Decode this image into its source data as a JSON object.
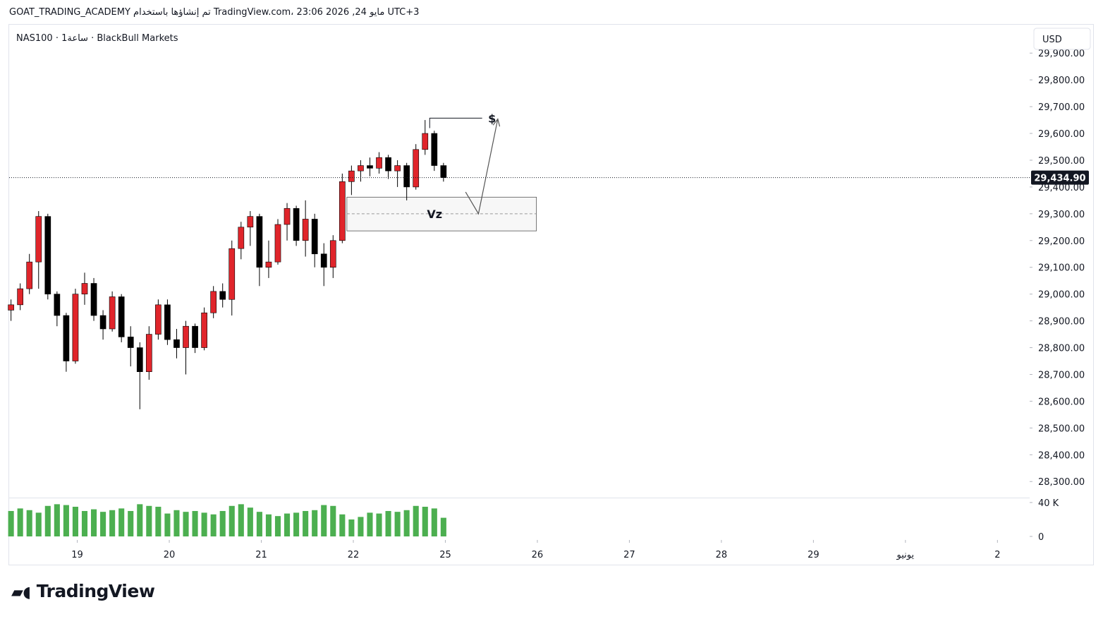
{
  "header": {
    "caption": "GOAT_TRADING_ACADEMY تم إنشاؤها باستخدام TradingView.com، 23:06 2026 ,24 مايو UTC+3"
  },
  "chart_data": {
    "type": "candlestick",
    "symbol": "NAS100 · 1ساعة · BlackBull Markets",
    "currency": "USD",
    "x": [
      -0.72,
      -0.62,
      -0.52,
      -0.42,
      -0.32,
      -0.22,
      -0.12,
      -0.02,
      0.08,
      0.18,
      0.28,
      0.38,
      0.48,
      0.58,
      0.68,
      0.78,
      0.88,
      0.98,
      1.08,
      1.18,
      1.28,
      1.38,
      1.48,
      1.58,
      1.68,
      1.78,
      1.88,
      1.98,
      2.08,
      2.18,
      2.28,
      2.38,
      2.48,
      2.58,
      2.68,
      2.78,
      2.88,
      2.98,
      3.08,
      3.18,
      3.28,
      3.38,
      3.48,
      3.58,
      3.68,
      3.78,
      3.88,
      3.98
    ],
    "open": [
      28940,
      28960,
      29020,
      29120,
      29290,
      29000,
      28920,
      28750,
      29000,
      29040,
      28920,
      28870,
      28990,
      28840,
      28800,
      28710,
      28850,
      28960,
      28830,
      28800,
      28880,
      28800,
      28930,
      29010,
      28980,
      29170,
      29250,
      29290,
      29100,
      29120,
      29260,
      29320,
      29200,
      29280,
      29150,
      29100,
      29200,
      29420,
      29460,
      29480,
      29470,
      29510,
      29460,
      29480,
      29400,
      29540,
      29600,
      29480
    ],
    "high": [
      28980,
      29040,
      29150,
      29310,
      29300,
      29010,
      28930,
      29020,
      29080,
      29060,
      28940,
      29010,
      29000,
      28880,
      28820,
      28880,
      28980,
      28980,
      28870,
      28900,
      28890,
      28950,
      29030,
      29040,
      29200,
      29270,
      29310,
      29300,
      29200,
      29280,
      29340,
      29330,
      29350,
      29300,
      29190,
      29220,
      29450,
      29480,
      29500,
      29510,
      29530,
      29520,
      29500,
      29490,
      29560,
      29650,
      29610,
      29490
    ],
    "low": [
      28900,
      28940,
      29000,
      29020,
      28980,
      28880,
      28710,
      28740,
      28960,
      28900,
      28830,
      28860,
      28820,
      28730,
      28570,
      28680,
      28830,
      28810,
      28760,
      28700,
      28780,
      28790,
      28910,
      28950,
      28920,
      29130,
      29180,
      29030,
      29060,
      29110,
      29200,
      29180,
      29140,
      29100,
      29030,
      29060,
      29190,
      29370,
      29420,
      29440,
      29450,
      29430,
      29400,
      29350,
      29390,
      29520,
      29460,
      29420
    ],
    "close": [
      28960,
      29020,
      29120,
      29290,
      29000,
      28920,
      28750,
      29000,
      29040,
      28920,
      28870,
      28990,
      28840,
      28800,
      28710,
      28850,
      28960,
      28830,
      28800,
      28880,
      28800,
      28930,
      29010,
      28980,
      29170,
      29250,
      29290,
      29100,
      29120,
      29260,
      29320,
      29200,
      29280,
      29150,
      29100,
      29200,
      29420,
      29460,
      29480,
      29470,
      29510,
      29460,
      29480,
      29400,
      29540,
      29600,
      29480,
      29434.9
    ],
    "up_color": "#e0252b",
    "down_color": "#000000",
    "last_price": {
      "value": 29434.9,
      "label": "29,434.90"
    },
    "xlim": [
      -0.74,
      10.35
    ],
    "xticks": [
      {
        "value": 0,
        "label": "19"
      },
      {
        "value": 1,
        "label": "20"
      },
      {
        "value": 2,
        "label": "21"
      },
      {
        "value": 3,
        "label": "22"
      },
      {
        "value": 4,
        "label": "25"
      },
      {
        "value": 5,
        "label": "26"
      },
      {
        "value": 6,
        "label": "27"
      },
      {
        "value": 7,
        "label": "28"
      },
      {
        "value": 8,
        "label": "29"
      },
      {
        "value": 9,
        "label": "يونيو"
      },
      {
        "value": 10,
        "label": "2"
      }
    ],
    "ylim": [
      28240,
      30006
    ],
    "yticks": [
      {
        "value": 28300,
        "label": "28,300.00"
      },
      {
        "value": 28400,
        "label": "28,400.00"
      },
      {
        "value": 28500,
        "label": "28,500.00"
      },
      {
        "value": 28600,
        "label": "28,600.00"
      },
      {
        "value": 28700,
        "label": "28,700.00"
      },
      {
        "value": 28800,
        "label": "28,800.00"
      },
      {
        "value": 28900,
        "label": "28,900.00"
      },
      {
        "value": 29000,
        "label": "29,000.00"
      },
      {
        "value": 29100,
        "label": "29,100.00"
      },
      {
        "value": 29200,
        "label": "29,200.00"
      },
      {
        "value": 29300,
        "label": "29,300.00"
      },
      {
        "value": 29400,
        "label": "29,400.00"
      },
      {
        "value": 29500,
        "label": "29,500.00"
      },
      {
        "value": 29600,
        "label": "29,600.00"
      },
      {
        "value": 29700,
        "label": "29,700.00"
      },
      {
        "value": 29800,
        "label": "29,800.00"
      },
      {
        "value": 29900,
        "label": "29,900.00"
      }
    ],
    "volume": {
      "values": [
        30000,
        33000,
        31000,
        28000,
        36000,
        38000,
        37000,
        35000,
        30000,
        32000,
        29000,
        31000,
        33000,
        30000,
        38000,
        36000,
        35000,
        27000,
        31000,
        29000,
        30000,
        28000,
        26000,
        30000,
        36000,
        38000,
        34000,
        29000,
        26000,
        24000,
        27000,
        28000,
        30000,
        31000,
        37000,
        36000,
        26000,
        20000,
        23000,
        28000,
        27000,
        30000,
        29000,
        31000,
        36000,
        35000,
        33000,
        22000
      ],
      "color": "#4caf50",
      "ylim": [
        0,
        45800
      ],
      "yticks": [
        0,
        {
          "value": 40000,
          "label": "40 K"
        }
      ]
    },
    "zone": {
      "label": "Vz",
      "x": [
        2.93,
        4.99
      ],
      "y": [
        29236,
        29362
      ],
      "mid": 29300
    },
    "target": {
      "label": "$",
      "x": [
        3.83,
        4.4
      ],
      "y": [
        29620,
        29657
      ]
    },
    "arrow": {
      "x": [
        4.22,
        4.36,
        4.57
      ],
      "y": [
        29381,
        29300,
        29654
      ]
    }
  },
  "logo": "TradingView"
}
